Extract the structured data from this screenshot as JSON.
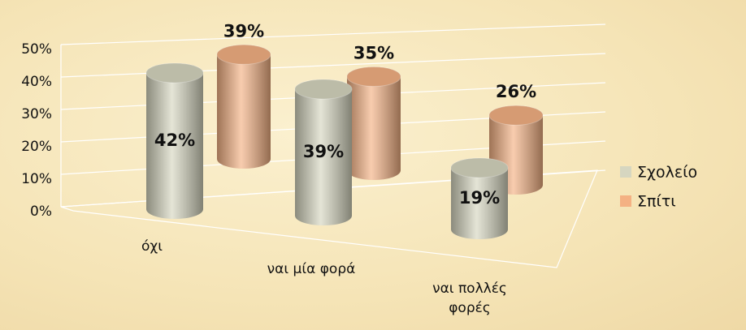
{
  "chart_data": {
    "type": "cylinder3d",
    "categories": [
      "όχι",
      "ναι μία φορά",
      "ναι πολλές φορές"
    ],
    "series": [
      {
        "name": "Σχολείο",
        "color": "#d6d6c0",
        "values": [
          42,
          39,
          19
        ],
        "value_labels": [
          "42%",
          "39%",
          "19%"
        ]
      },
      {
        "name": "Σπίτι",
        "color": "#f4b183",
        "values": [
          39,
          35,
          26
        ],
        "value_labels": [
          "39%",
          "35%",
          "26%"
        ]
      }
    ],
    "ylim": [
      0,
      50
    ],
    "yticks": [
      {
        "value": 0,
        "label": "0%"
      },
      {
        "value": 10,
        "label": "10%"
      },
      {
        "value": 20,
        "label": "20%"
      },
      {
        "value": 30,
        "label": "30%"
      },
      {
        "value": 40,
        "label": "40%"
      },
      {
        "value": 50,
        "label": "50%"
      }
    ],
    "grid": true,
    "legend": "right"
  }
}
